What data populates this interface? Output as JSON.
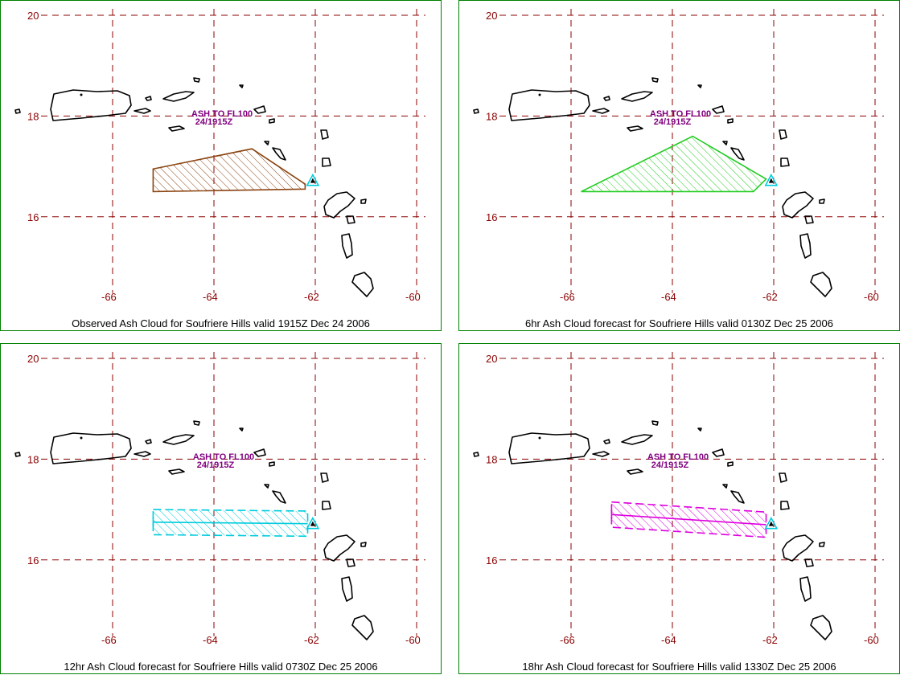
{
  "colors": {
    "frame": "#008000",
    "grid": "#8b0000",
    "label": "#800080",
    "land": "#000000",
    "cloud_obs": "#8b4513",
    "cloud_6": "#22cc22",
    "cloud_12": "#00ccdd",
    "cloud_18": "#dd00dd",
    "volcano": "#00ccdd"
  },
  "axes": {
    "lon_ticks": [
      "-66",
      "-64",
      "-62",
      "-60"
    ],
    "lat_ticks": [
      "20",
      "18",
      "16"
    ]
  },
  "volcano_label": {
    "line1": "ASH TO FL100",
    "line2": "24/1915Z"
  },
  "panels": [
    {
      "caption": "Observed Ash Cloud for Soufriere  Hills valid 1915Z Dec 24 2006",
      "cloud_type": "polygon",
      "cloud_color_key": "cloud_obs",
      "cloud_lonlat": [
        [
          -65.2,
          16.95
        ],
        [
          -63.25,
          17.35
        ],
        [
          -62.2,
          16.65
        ],
        [
          -62.2,
          16.55
        ],
        [
          -65.2,
          16.5
        ]
      ]
    },
    {
      "caption": "6hr Ash Cloud forecast for Soufriere  Hills valid 0130Z Dec 25 2006",
      "cloud_type": "polygon",
      "cloud_color_key": "cloud_6",
      "cloud_lonlat": [
        [
          -65.8,
          16.5
        ],
        [
          -63.6,
          17.6
        ],
        [
          -62.15,
          16.75
        ],
        [
          -62.4,
          16.5
        ]
      ]
    },
    {
      "caption": "12hr Ash Cloud forecast for Soufriere  Hills valid 0730Z Dec 25 2006",
      "cloud_type": "band",
      "cloud_color_key": "cloud_12",
      "cloud_lonlat": [
        [
          -65.2,
          16.75
        ],
        [
          -62.15,
          16.72
        ]
      ],
      "band_half_width": 0.25
    },
    {
      "caption": "18hr Ash Cloud forecast for Soufriere  Hills valid 1330Z Dec 25 2006",
      "cloud_type": "band",
      "cloud_color_key": "cloud_18",
      "cloud_lonlat": [
        [
          -65.2,
          16.9
        ],
        [
          -62.15,
          16.7
        ]
      ],
      "band_half_width": 0.25
    }
  ]
}
